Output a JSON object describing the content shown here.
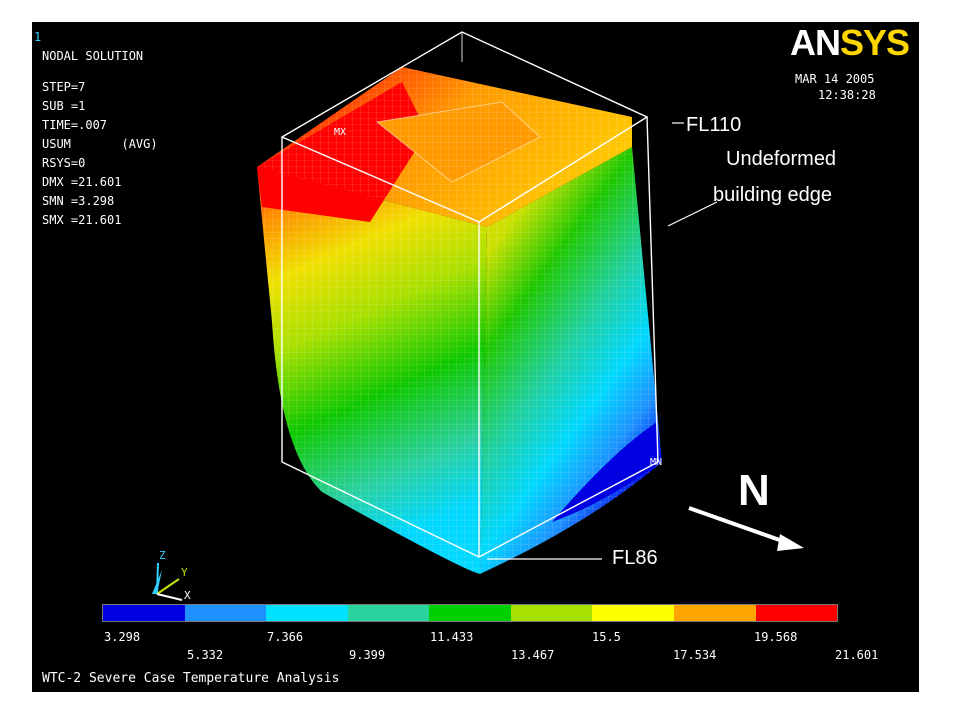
{
  "window": {
    "number": "1",
    "logo_part1": "AN",
    "logo_part2": "SYS",
    "date": "MAR 14 2005",
    "time": "12:38:28"
  },
  "solution_info": {
    "title": "NODAL SOLUTION",
    "lines": [
      "STEP=7",
      "SUB =1",
      "TIME=.007",
      "USUM       (AVG)",
      "RSYS=0",
      "DMX =21.601",
      "SMN =3.298",
      "SMX =21.601"
    ]
  },
  "markers": {
    "max": "MX",
    "min": "MN"
  },
  "annotations": {
    "fl110": "FL110",
    "undeformed_line1": "Undeformed",
    "undeformed_line2": "building edge",
    "fl86": "FL86",
    "north": "N"
  },
  "triad": {
    "z": "Z",
    "y": "Y",
    "x": "X"
  },
  "legend": {
    "colors": [
      "#0000e0",
      "#1e90ff",
      "#00e0ff",
      "#2ad4a0",
      "#00d000",
      "#a8e000",
      "#ffff00",
      "#ffa500",
      "#ff0000"
    ],
    "upper_ticks": [
      "3.298",
      "7.366",
      "11.433",
      "15.5",
      "19.568"
    ],
    "lower_ticks": [
      "5.332",
      "9.399",
      "13.467",
      "17.534",
      "21.601"
    ]
  },
  "footer_title": "WTC-2 Severe Case Temperature Analysis",
  "colors": {
    "background": "#000000",
    "accent_cyan": "#33ccff",
    "logo_yellow": "#ffd600"
  }
}
